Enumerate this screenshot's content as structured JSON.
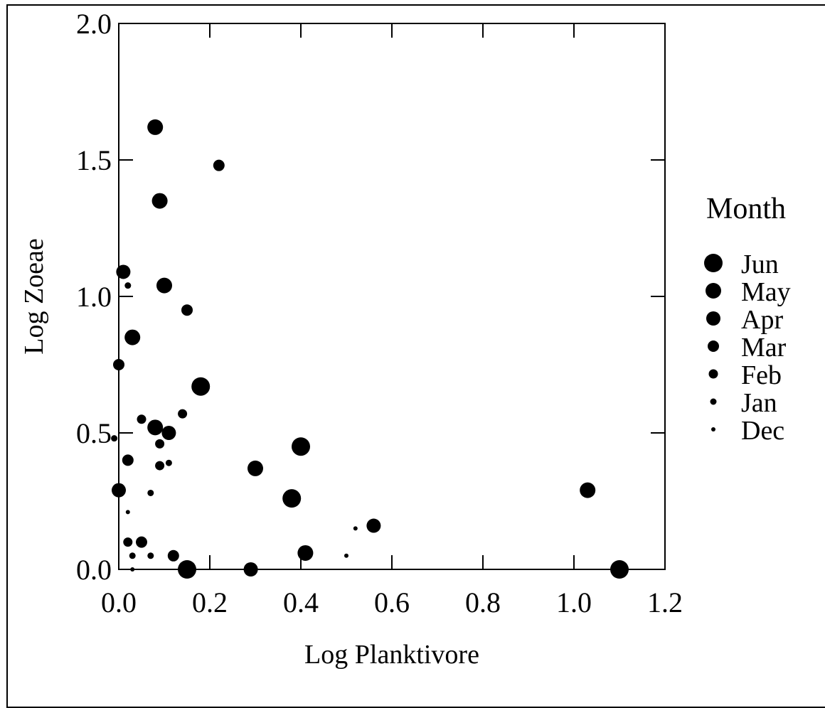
{
  "chart_data": {
    "type": "scatter",
    "title": "",
    "xlabel": "Log Planktivore",
    "ylabel": "Log Zoeae",
    "xlim": [
      0.0,
      1.2
    ],
    "ylim": [
      0.0,
      2.0
    ],
    "x_ticks": [
      "0.0",
      "0.2",
      "0.4",
      "0.6",
      "0.8",
      "1.0",
      "1.2"
    ],
    "y_ticks": [
      "0.0",
      "0.5",
      "1.0",
      "1.5",
      "2.0"
    ],
    "x_tick_values": [
      0.0,
      0.2,
      0.4,
      0.6,
      0.8,
      1.0,
      1.2
    ],
    "y_tick_values": [
      0.0,
      0.5,
      1.0,
      1.5,
      2.0
    ],
    "grid": false,
    "legend": {
      "title": "Month",
      "placement": "right",
      "entries": [
        "Jun",
        "May",
        "Apr",
        "Mar",
        "Feb",
        "Jan",
        "Dec"
      ]
    },
    "points": [
      {
        "x": 0.08,
        "y": 1.62,
        "month": "May"
      },
      {
        "x": 0.22,
        "y": 1.48,
        "month": "Mar"
      },
      {
        "x": 0.09,
        "y": 1.35,
        "month": "May"
      },
      {
        "x": 0.01,
        "y": 1.09,
        "month": "Apr"
      },
      {
        "x": 0.02,
        "y": 1.04,
        "month": "Jan"
      },
      {
        "x": 0.1,
        "y": 1.04,
        "month": "May"
      },
      {
        "x": 0.15,
        "y": 0.95,
        "month": "Mar"
      },
      {
        "x": 0.03,
        "y": 0.85,
        "month": "May"
      },
      {
        "x": 0.0,
        "y": 0.75,
        "month": "Mar"
      },
      {
        "x": 0.18,
        "y": 0.67,
        "month": "Jun"
      },
      {
        "x": 0.14,
        "y": 0.57,
        "month": "Feb"
      },
      {
        "x": 0.05,
        "y": 0.55,
        "month": "Feb"
      },
      {
        "x": 0.08,
        "y": 0.52,
        "month": "May"
      },
      {
        "x": 0.11,
        "y": 0.5,
        "month": "Apr"
      },
      {
        "x": -0.01,
        "y": 0.48,
        "month": "Jan"
      },
      {
        "x": 0.09,
        "y": 0.46,
        "month": "Feb"
      },
      {
        "x": 0.4,
        "y": 0.45,
        "month": "Jun"
      },
      {
        "x": 0.02,
        "y": 0.4,
        "month": "Mar"
      },
      {
        "x": 0.11,
        "y": 0.39,
        "month": "Jan"
      },
      {
        "x": 0.09,
        "y": 0.38,
        "month": "Feb"
      },
      {
        "x": 0.3,
        "y": 0.37,
        "month": "May"
      },
      {
        "x": 0.0,
        "y": 0.29,
        "month": "Apr"
      },
      {
        "x": 1.03,
        "y": 0.29,
        "month": "May"
      },
      {
        "x": 0.07,
        "y": 0.28,
        "month": "Jan"
      },
      {
        "x": 0.38,
        "y": 0.26,
        "month": "Jun"
      },
      {
        "x": 0.02,
        "y": 0.21,
        "month": "Dec"
      },
      {
        "x": 0.52,
        "y": 0.15,
        "month": "Dec"
      },
      {
        "x": 0.56,
        "y": 0.16,
        "month": "Apr"
      },
      {
        "x": 0.02,
        "y": 0.1,
        "month": "Feb"
      },
      {
        "x": 0.05,
        "y": 0.1,
        "month": "Mar"
      },
      {
        "x": 0.12,
        "y": 0.05,
        "month": "Mar"
      },
      {
        "x": 0.03,
        "y": 0.05,
        "month": "Jan"
      },
      {
        "x": 0.07,
        "y": 0.05,
        "month": "Jan"
      },
      {
        "x": 0.41,
        "y": 0.06,
        "month": "May"
      },
      {
        "x": 0.5,
        "y": 0.05,
        "month": "Dec"
      },
      {
        "x": 0.03,
        "y": 0.0,
        "month": "Dec"
      },
      {
        "x": 0.15,
        "y": 0.0,
        "month": "Jun"
      },
      {
        "x": 0.29,
        "y": 0.0,
        "month": "Apr"
      },
      {
        "x": 1.1,
        "y": 0.0,
        "month": "Jun"
      }
    ]
  }
}
